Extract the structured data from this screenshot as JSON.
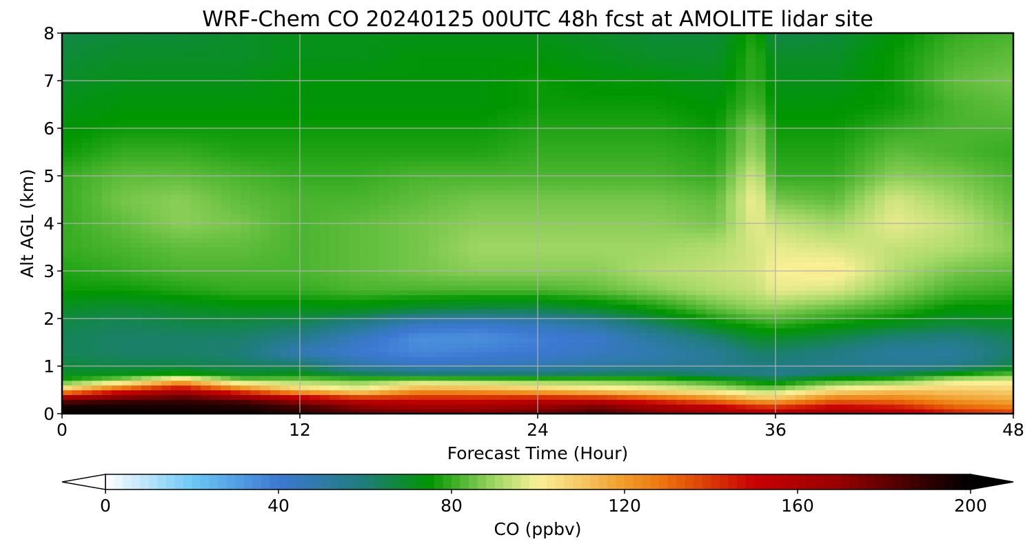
{
  "chart_data": {
    "type": "heatmap",
    "title": "WRF-Chem CO  20240125 00UTC 48h fcst at AMOLITE lidar site",
    "xlabel": "Forecast Time (Hour)",
    "ylabel": "Alt AGL (km)",
    "xlim": [
      0,
      48
    ],
    "ylim": [
      0,
      8
    ],
    "x_ticks": [
      0,
      12,
      24,
      36,
      48
    ],
    "y_ticks": [
      0,
      1,
      2,
      3,
      4,
      5,
      6,
      7,
      8
    ],
    "grid": true,
    "x": [
      0,
      3,
      6,
      9,
      12,
      15,
      18,
      21,
      24,
      27,
      30,
      33,
      35,
      36,
      39,
      42,
      45,
      48
    ],
    "y": [
      0,
      0.15,
      0.3,
      0.5,
      0.7,
      0.85,
      1.0,
      1.3,
      1.6,
      1.9,
      2.2,
      2.6,
      3.0,
      3.5,
      4.0,
      4.5,
      5.0,
      5.5,
      6.0,
      6.5,
      7.0,
      7.5,
      8.0
    ],
    "z": [
      [
        200,
        200,
        198,
        198,
        192,
        182,
        178,
        176,
        180,
        186,
        176,
        168,
        160,
        158,
        166,
        160,
        148,
        140
      ],
      [
        196,
        196,
        195,
        194,
        186,
        172,
        166,
        166,
        170,
        176,
        164,
        152,
        142,
        140,
        150,
        145,
        132,
        126
      ],
      [
        178,
        185,
        188,
        182,
        165,
        150,
        148,
        148,
        152,
        150,
        138,
        126,
        116,
        114,
        130,
        128,
        120,
        116
      ],
      [
        112,
        140,
        158,
        132,
        110,
        100,
        120,
        118,
        112,
        106,
        102,
        96,
        90,
        90,
        104,
        110,
        110,
        108
      ],
      [
        78,
        90,
        112,
        88,
        88,
        86,
        90,
        88,
        86,
        86,
        84,
        78,
        72,
        70,
        80,
        84,
        96,
        98
      ],
      [
        70,
        72,
        76,
        70,
        72,
        64,
        60,
        60,
        60,
        62,
        64,
        60,
        58,
        56,
        62,
        64,
        74,
        82
      ],
      [
        68,
        66,
        66,
        64,
        64,
        50,
        44,
        46,
        48,
        50,
        52,
        54,
        58,
        58,
        56,
        54,
        56,
        66
      ],
      [
        64,
        62,
        62,
        60,
        46,
        40,
        36,
        38,
        40,
        44,
        48,
        54,
        62,
        62,
        58,
        52,
        52,
        62
      ],
      [
        64,
        62,
        62,
        62,
        56,
        44,
        34,
        34,
        38,
        42,
        52,
        62,
        70,
        70,
        66,
        60,
        58,
        64
      ],
      [
        66,
        64,
        66,
        66,
        64,
        56,
        44,
        42,
        46,
        52,
        64,
        74,
        78,
        80,
        76,
        72,
        68,
        70
      ],
      [
        70,
        68,
        70,
        72,
        72,
        72,
        68,
        66,
        66,
        70,
        76,
        84,
        88,
        88,
        84,
        80,
        74,
        74
      ],
      [
        76,
        76,
        78,
        80,
        80,
        82,
        82,
        82,
        82,
        84,
        88,
        92,
        94,
        98,
        96,
        88,
        82,
        80
      ],
      [
        78,
        80,
        82,
        82,
        82,
        84,
        86,
        88,
        88,
        88,
        92,
        94,
        96,
        100,
        102,
        92,
        86,
        84
      ],
      [
        80,
        82,
        84,
        84,
        82,
        84,
        86,
        90,
        90,
        90,
        90,
        92,
        96,
        98,
        96,
        94,
        92,
        88
      ],
      [
        80,
        84,
        88,
        86,
        82,
        84,
        86,
        88,
        88,
        88,
        88,
        86,
        98,
        94,
        90,
        98,
        94,
        86
      ],
      [
        80,
        86,
        88,
        84,
        82,
        82,
        84,
        86,
        86,
        86,
        86,
        84,
        100,
        86,
        84,
        96,
        90,
        84
      ],
      [
        80,
        84,
        84,
        82,
        80,
        80,
        82,
        82,
        82,
        82,
        82,
        80,
        96,
        80,
        80,
        88,
        86,
        82
      ],
      [
        76,
        80,
        80,
        78,
        78,
        78,
        78,
        78,
        80,
        80,
        80,
        78,
        90,
        78,
        78,
        84,
        82,
        80
      ],
      [
        74,
        76,
        76,
        76,
        76,
        76,
        76,
        76,
        78,
        78,
        78,
        76,
        88,
        76,
        76,
        80,
        82,
        82
      ],
      [
        72,
        74,
        74,
        74,
        74,
        74,
        74,
        74,
        76,
        76,
        76,
        74,
        82,
        74,
        74,
        76,
        82,
        84
      ],
      [
        70,
        72,
        72,
        72,
        74,
        74,
        74,
        74,
        76,
        74,
        74,
        72,
        80,
        72,
        72,
        76,
        84,
        86
      ],
      [
        68,
        70,
        70,
        70,
        72,
        72,
        74,
        74,
        74,
        72,
        70,
        70,
        80,
        70,
        70,
        76,
        82,
        84
      ],
      [
        66,
        68,
        68,
        70,
        72,
        72,
        72,
        72,
        72,
        70,
        68,
        68,
        78,
        66,
        68,
        74,
        80,
        82
      ]
    ],
    "colorbar": {
      "label": "CO  (ppbv)",
      "ticks": [
        0,
        40,
        80,
        120,
        160,
        200
      ],
      "range": [
        0,
        200
      ],
      "extend": "both",
      "placement": "bottom",
      "colors": [
        [
          0,
          "#ffffff"
        ],
        [
          20,
          "#6cc8f5"
        ],
        [
          40,
          "#3c78d2"
        ],
        [
          60,
          "#1e7d78"
        ],
        [
          75,
          "#009600"
        ],
        [
          90,
          "#a0d764"
        ],
        [
          100,
          "#faf096"
        ],
        [
          110,
          "#f5c864"
        ],
        [
          120,
          "#f09b28"
        ],
        [
          130,
          "#eb6e0a"
        ],
        [
          150,
          "#c80000"
        ],
        [
          170,
          "#960000"
        ],
        [
          200,
          "#000000"
        ]
      ]
    }
  }
}
